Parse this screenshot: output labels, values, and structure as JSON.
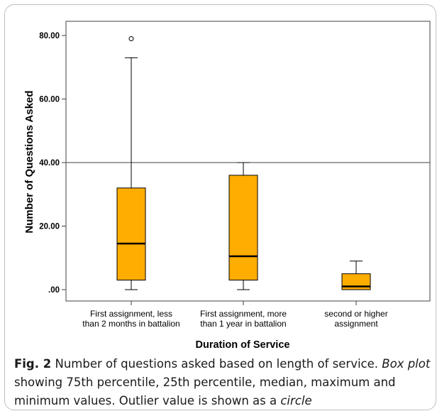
{
  "chart_data": {
    "type": "box",
    "xlabel": "Duration of Service",
    "ylabel": "Number of Questions Asked",
    "ylim": [
      0,
      85
    ],
    "yticks": [
      0,
      20,
      40,
      60,
      80
    ],
    "ytick_labels": [
      ".00",
      "20.00",
      "40.00",
      "60.00",
      "80.00"
    ],
    "reference_line": 40,
    "box_color": "#ffad00",
    "categories": [
      [
        "First assignment, less",
        "than 2 months in battalion"
      ],
      [
        "First assignment, more",
        "than 1 year in battalion"
      ],
      [
        "second or higher",
        "assignment"
      ]
    ],
    "boxes": [
      {
        "min": 0,
        "q1": 3,
        "median": 14.5,
        "q3": 32,
        "max": 73,
        "outliers": [
          79
        ]
      },
      {
        "min": 0,
        "q1": 3,
        "median": 10.5,
        "q3": 36,
        "max": 40,
        "outliers": []
      },
      {
        "min": 0,
        "q1": 0,
        "median": 1,
        "q3": 5,
        "max": 9,
        "outliers": []
      }
    ]
  },
  "caption": {
    "fig_label": "Fig. 2",
    "part1": "  Number of questions asked based on length of service. ",
    "italic1": "Box plot",
    "part2": " showing 75th percentile, 25th percentile, median, maximum and minimum values. Outlier value is shown as a ",
    "italic2": "circle"
  }
}
